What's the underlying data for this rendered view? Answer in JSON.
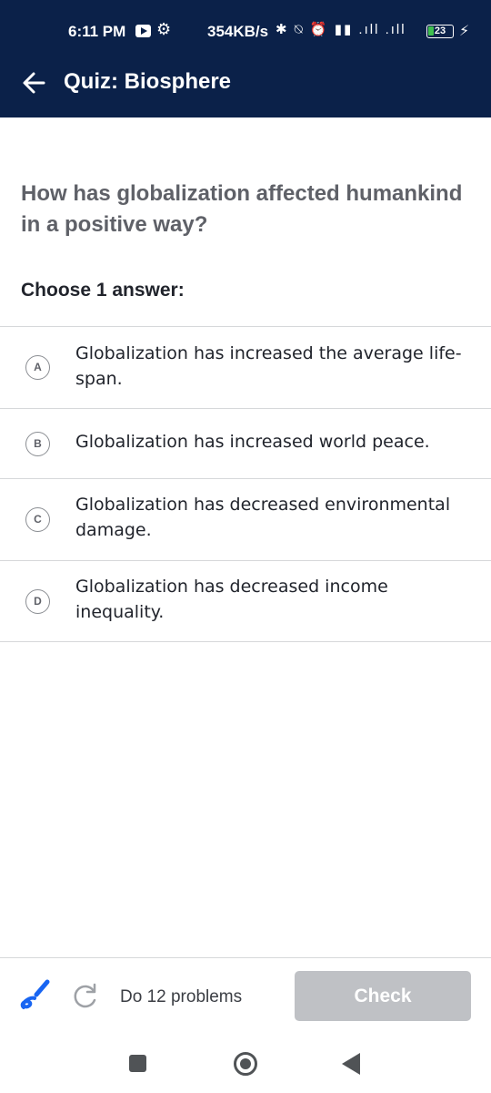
{
  "status_bar": {
    "time": "6:11 PM",
    "speed": "354KB/s",
    "icons": [
      "youtube-icon",
      "settings-icon",
      "bluetooth-icon",
      "mute-icon",
      "alarm-icon",
      "volte-icon",
      "signal-icon",
      "battery-icon",
      "charging-icon"
    ],
    "extra_icons_text": "✱ ⍉ ⏰ ▮▮ .ıll .ıll",
    "battery": "23",
    "bolt": "⚡"
  },
  "header": {
    "title": "Quiz: Biosphere",
    "back_icon": "arrow-left-icon"
  },
  "question": {
    "text": "How has globalization affected humankind in a positive way?",
    "instruction": "Choose 1 answer:"
  },
  "choices": [
    {
      "letter": "A",
      "text": "Globalization has increased the average life-span."
    },
    {
      "letter": "B",
      "text": "Globalization has increased world peace."
    },
    {
      "letter": "C",
      "text": "Globalization has decreased environmental damage."
    },
    {
      "letter": "D",
      "text": "Globalization has decreased income inequality."
    }
  ],
  "toolbar": {
    "scratchpad_icon": "pencil-icon",
    "redo_icon": "redo-icon",
    "problems_label": "Do 12 problems",
    "check_label": "Check"
  },
  "colors": {
    "header_bg": "#0b2149",
    "accent_blue": "#1865f2",
    "check_disabled": "#bfc1c5"
  }
}
